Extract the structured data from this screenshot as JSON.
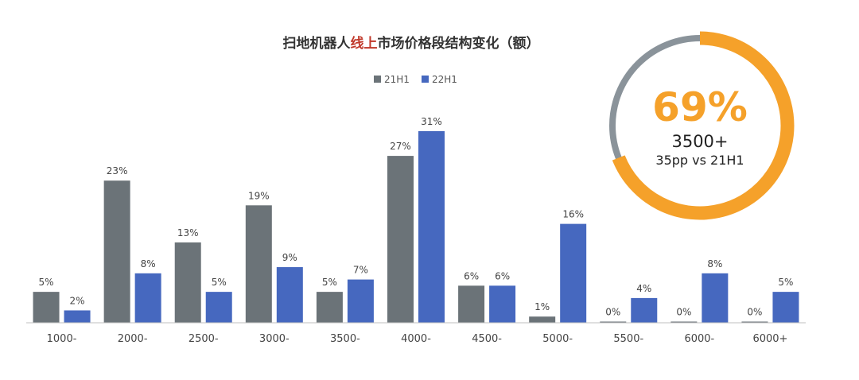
{
  "chart_data": {
    "type": "bar",
    "title_parts": [
      {
        "text": "扫地机器人",
        "color": "#333333"
      },
      {
        "text": "线上",
        "color": "#c0392b"
      },
      {
        "text": "市场价格段结构变化（额）",
        "color": "#333333"
      }
    ],
    "categories": [
      "1000-",
      "2000-",
      "2500-",
      "3000-",
      "3500-",
      "4000-",
      "4500-",
      "5000-",
      "5500-",
      "6000-",
      "6000+"
    ],
    "series": [
      {
        "name": "21H1",
        "color": "#6b7378",
        "values": [
          5,
          23,
          13,
          19,
          5,
          27,
          6,
          1,
          0,
          0,
          0
        ],
        "labels": [
          "5%",
          "23%",
          "13%",
          "19%",
          "5%",
          "27%",
          "6%",
          "1%",
          "0%",
          "0%",
          "0%"
        ]
      },
      {
        "name": "22H1",
        "color": "#4668bf",
        "values": [
          2,
          8,
          5,
          9,
          7,
          31,
          6,
          16,
          4,
          8,
          5
        ],
        "labels": [
          "2%",
          "8%",
          "5%",
          "9%",
          "7%",
          "31%",
          "6%",
          "16%",
          "4%",
          "8%",
          "5%"
        ]
      }
    ],
    "ylim": [
      0,
      31
    ],
    "grid": false,
    "legend_position": "top-center"
  },
  "callout": {
    "percent_value": 69,
    "percent_text": "69%",
    "line1": "3500+",
    "line2": "35pp vs 21H1",
    "ring_color": "#f5a12a",
    "track_color": "#8a939a"
  }
}
